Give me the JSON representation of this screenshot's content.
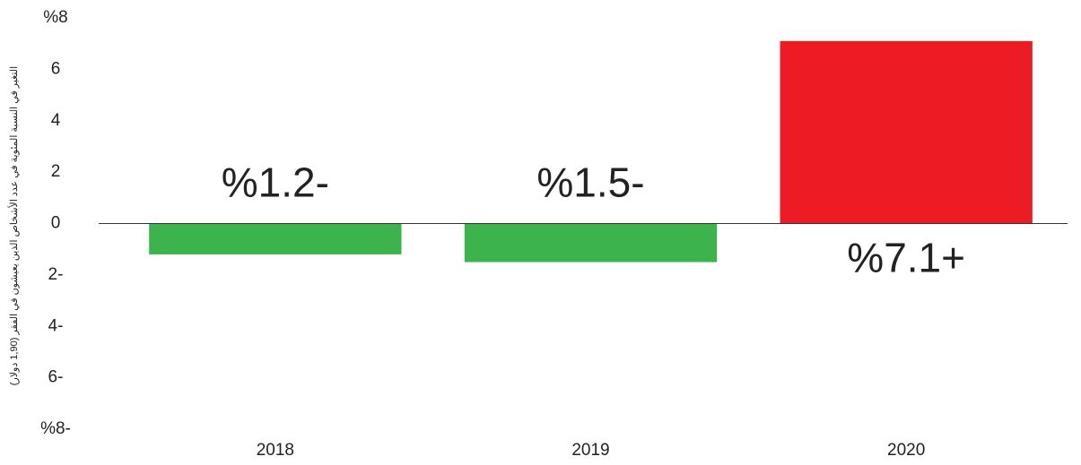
{
  "chart_data": {
    "type": "bar",
    "y_axis_label": "التغير في النسبة المئوية في عدد الأشخاص الذين يعيشون في الفقر (1,90 دولار)",
    "categories": [
      "2018",
      "2019",
      "2020"
    ],
    "values": [
      -1.2,
      -1.5,
      7.1
    ],
    "value_labels": [
      "%1.2-",
      "%1.5-",
      "%7.1+"
    ],
    "colors": [
      "#3cb44b",
      "#3cb44b",
      "#ed1c24"
    ],
    "ylim": [
      -8,
      8
    ],
    "yticks": [
      {
        "value": 8,
        "label": "%8"
      },
      6,
      4,
      2,
      0,
      {
        "value": -2,
        "label": "2-"
      },
      {
        "value": -4,
        "label": "4-"
      },
      {
        "value": -6,
        "label": "6-"
      },
      {
        "value": -8,
        "label": "%8-"
      }
    ],
    "grid": false
  }
}
